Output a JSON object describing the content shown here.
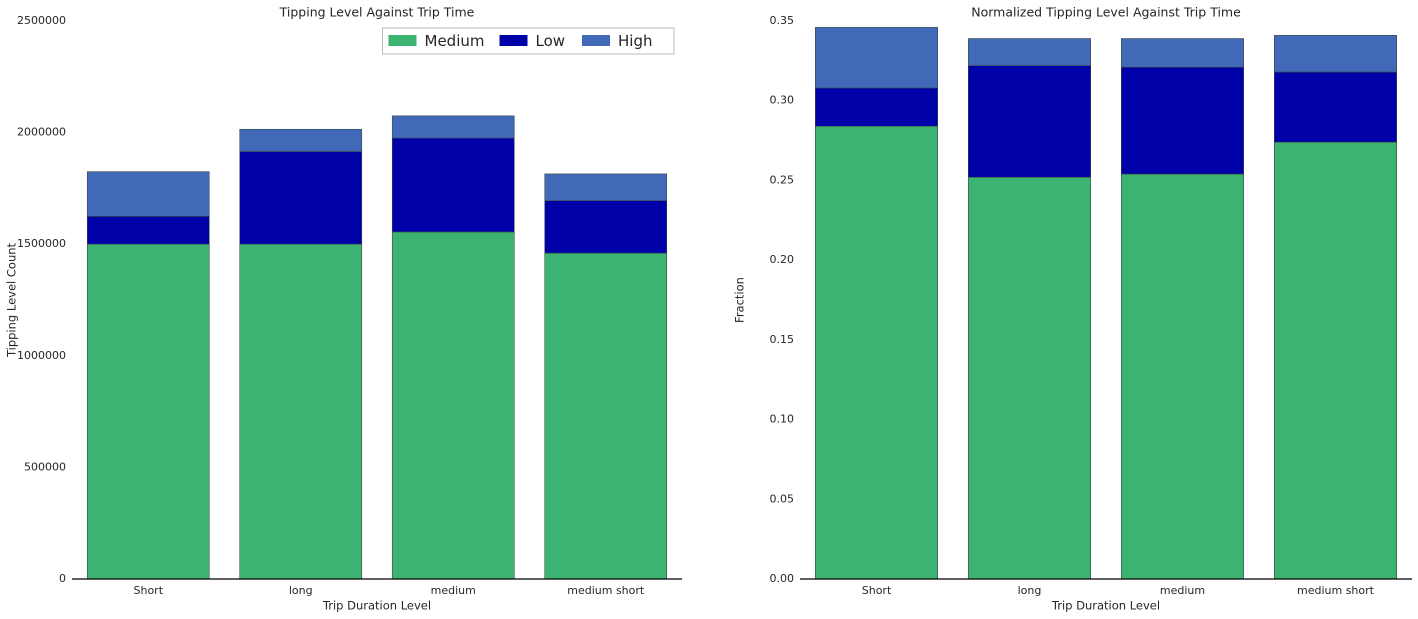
{
  "chart_data": [
    {
      "type": "stacked_bar",
      "title": "Tipping Level Against Trip Time",
      "x_label": "Trip Duration Level",
      "y_label": "Tipping Level Count",
      "categories": [
        "Short",
        "long",
        "medium",
        "medium short"
      ],
      "series": [
        {
          "name": "Medium",
          "color": "#3cb371",
          "values": [
            1500000,
            1500000,
            1555000,
            1460000
          ]
        },
        {
          "name": "Low",
          "color": "#0000a8",
          "values": [
            125000,
            415000,
            420000,
            235000
          ]
        },
        {
          "name": "High",
          "color": "#4169b8",
          "values": [
            200000,
            100000,
            100000,
            120000
          ]
        }
      ],
      "ylim": [
        0,
        2500000
      ],
      "yticks": [
        0,
        500000,
        1000000,
        1500000,
        2000000,
        2500000
      ],
      "legend": "upper right"
    },
    {
      "type": "stacked_bar",
      "title": "Normalized Tipping Level Against Trip Time",
      "x_label": "Trip Duration Level",
      "y_label": "Fraction",
      "categories": [
        "Short",
        "long",
        "medium",
        "medium short"
      ],
      "series": [
        {
          "name": "Medium",
          "color": "#3cb371",
          "values": [
            0.284,
            0.252,
            0.254,
            0.274
          ]
        },
        {
          "name": "Low",
          "color": "#0000a8",
          "values": [
            0.024,
            0.07,
            0.067,
            0.044
          ]
        },
        {
          "name": "High",
          "color": "#4169b8",
          "values": [
            0.038,
            0.017,
            0.018,
            0.023
          ]
        }
      ],
      "ylim": [
        0,
        0.35
      ],
      "yticks": [
        {
          "value": 0,
          "label": "0.00"
        },
        0.05,
        {
          "value": 0.1,
          "label": "0.10"
        },
        0.15,
        {
          "value": 0.2,
          "label": "0.20"
        },
        0.25,
        {
          "value": 0.3,
          "label": "0.30"
        },
        0.35
      ],
      "legend": false
    }
  ]
}
